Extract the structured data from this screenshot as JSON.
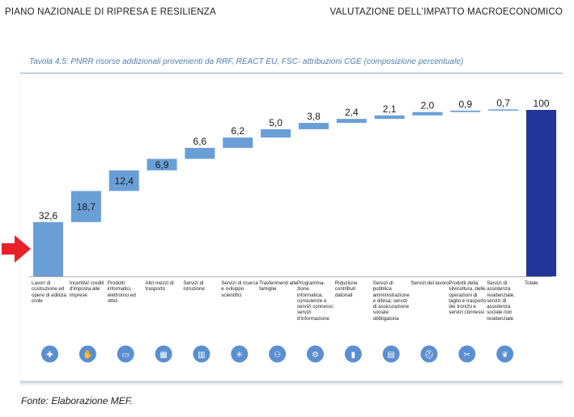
{
  "header": {
    "left": "PIANO NAZIONALE DI RIPRESA E RESILIENZA",
    "right": "VALUTAZIONE DELL'IMPATTO MACROECONOMICO"
  },
  "caption": "Tavola 4.5: PNRR risorse addizionali provenienti da RRF, REACT EU, FSC- attribuzioni CGE (composizione percentuale)",
  "source": "Fonte: Elaborazione MEF.",
  "colors": {
    "bar": "#6a9fd6",
    "total": "#21359a",
    "icon": "#5b8fd0",
    "arrow": "#e8202a"
  },
  "chart_data": {
    "type": "bar",
    "subtype": "waterfall",
    "categories": [
      "Lavori di costruzione ed opere di edilizia civile",
      "Incentivi/ crediti d'imposta alle imprese",
      "Prodotti informatici, elettronici ed ottici",
      "Altri mezzi di trasporto",
      "Servizi di istruzione",
      "Servizi di ricerca e sviluppo scientifici",
      "Trasferimenti alle famiglie",
      "Programma-zione informatica, consulenze e servizi connessi; servizi d'informazione",
      "Riduzione contributi datoriali",
      "Servizi di pubblica amministrazione e difesa; servizi di assicurazione sociale obbligatoria",
      "Servizi del lavoro",
      "Prodotti della silvicoltura, delle operazioni di taglio e trasporto dei tronchi e servizi connessi",
      "Servizi di assistenza residenziale; servizi di assistenza sociale non residenziale",
      "Totale"
    ],
    "values": [
      32.6,
      18.7,
      12.4,
      6.9,
      6.6,
      6.2,
      5.0,
      3.8,
      2.4,
      2.1,
      2.0,
      0.9,
      0.7,
      100
    ],
    "value_labels": [
      "32,6",
      "18,7",
      "12,4",
      "6,9",
      "6,6",
      "6,2",
      "5,0",
      "3,8",
      "2,4",
      "2,1",
      "2,0",
      "0,9",
      "0,7",
      "100"
    ],
    "total_index": 13,
    "ylim": [
      0,
      100
    ],
    "grid": false,
    "legend": "none"
  },
  "icons": [
    "worker-icon",
    "hand-coin-icon",
    "monitor-icon",
    "bus-icon",
    "books-icon",
    "lab-icon",
    "family-icon",
    "technician-icon",
    "factory-icon",
    "building-icon",
    "helmet-icon",
    "saw-icon",
    "care-icon"
  ]
}
